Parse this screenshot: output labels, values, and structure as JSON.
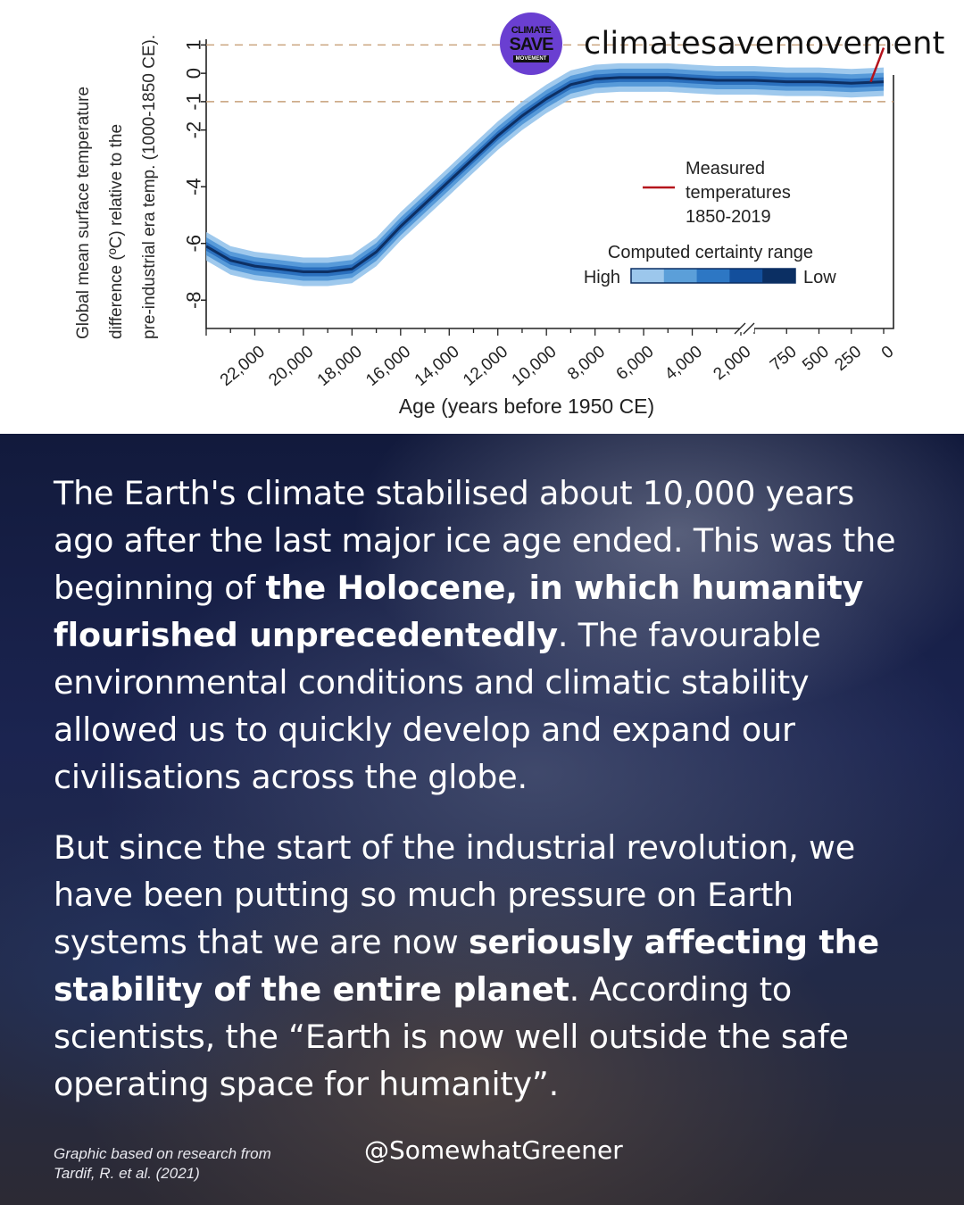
{
  "brand": {
    "logo_line1": "CLIMATE",
    "logo_line2": "SAVE",
    "logo_line3": "MOVEMENT",
    "account_name": "climatesavemovement",
    "logo_color": "#6a3fd1"
  },
  "chart_data": {
    "type": "line",
    "ylabel_lines": [
      "Global mean surface temperature",
      "difference (ºC) relative to the",
      "pre-industrial era temp. (1000-1850 CE)."
    ],
    "xlabel": "Age (years before 1950 CE)",
    "y_ticks": [
      "1",
      "0",
      "-1",
      "-2",
      "-4",
      "-6",
      "-8"
    ],
    "y_tick_values": [
      1,
      0,
      -1,
      -2,
      -4,
      -6,
      -8
    ],
    "ylim": [
      -9,
      1.2
    ],
    "x_ticks_left": [
      "22,000",
      "20,000",
      "18,000",
      "16,000",
      "14,000",
      "12,000",
      "10,000",
      "8,000",
      "6,000",
      "4,000",
      "2,000"
    ],
    "x_ticks_right": [
      "750",
      "500",
      "250",
      "0"
    ],
    "reference_lines": [
      1,
      -1
    ],
    "axis_break_at": "2,000",
    "series": [
      {
        "name": "Computed certainty range",
        "x": [
          24000,
          23000,
          22000,
          21000,
          20000,
          19000,
          18000,
          17000,
          16000,
          15000,
          14000,
          13000,
          12000,
          11000,
          10000,
          9000,
          8000,
          7000,
          6000,
          5000,
          4000,
          3000,
          2000,
          1500,
          1000,
          750,
          500,
          250,
          0
        ],
        "y": [
          -6.1,
          -6.6,
          -6.8,
          -6.9,
          -7.0,
          -7.0,
          -6.9,
          -6.3,
          -5.4,
          -4.6,
          -3.8,
          -3.0,
          -2.2,
          -1.5,
          -0.9,
          -0.4,
          -0.2,
          -0.15,
          -0.15,
          -0.15,
          -0.2,
          -0.25,
          -0.25,
          -0.25,
          -0.25,
          -0.3,
          -0.3,
          -0.35,
          -0.3
        ]
      },
      {
        "name": "Measured temperatures",
        "x": [
          100,
          0
        ],
        "y": [
          -0.3,
          0.9
        ]
      }
    ],
    "legend": {
      "measured_label_lines": [
        "Measured",
        "temperatures",
        "1850-2019"
      ],
      "measured_color": "#b5121b",
      "range_title": "Computed certainty range",
      "range_high": "High",
      "range_low": "Low",
      "range_colors": [
        "#9cc7ec",
        "#5b9fd9",
        "#2d77c4",
        "#134f9c",
        "#0b2f63"
      ]
    },
    "band_colors": {
      "outer": "#8ec0ea",
      "middle": "#4f95d6",
      "inner": "#2a6fbd",
      "line": "#0d2f63"
    },
    "grid": false,
    "legend_placement": "right"
  },
  "text": {
    "p1_a": "The Earth's climate stabilised about 10,000 years ago after the last major ice age ended. This was the beginning of ",
    "p1_b": "the Holocene, in which humanity flourished unprecedentedly",
    "p1_c": ". The favourable environmental conditions and climatic stability allowed us to quickly develop and expand our civilisations across the globe.",
    "p2_a": "But since the start of the industrial revolution, we have been putting so much pressure on Earth systems that we are now ",
    "p2_b": "seriously affecting the stability of the entire planet",
    "p2_c": ". According to scientists, the “Earth is now well outside the safe operating space for humanity”.",
    "credit_line1": "Graphic based on research from",
    "credit_line2": "Tardif, R. et al. (2021)",
    "handle": "@SomewhatGreener"
  }
}
